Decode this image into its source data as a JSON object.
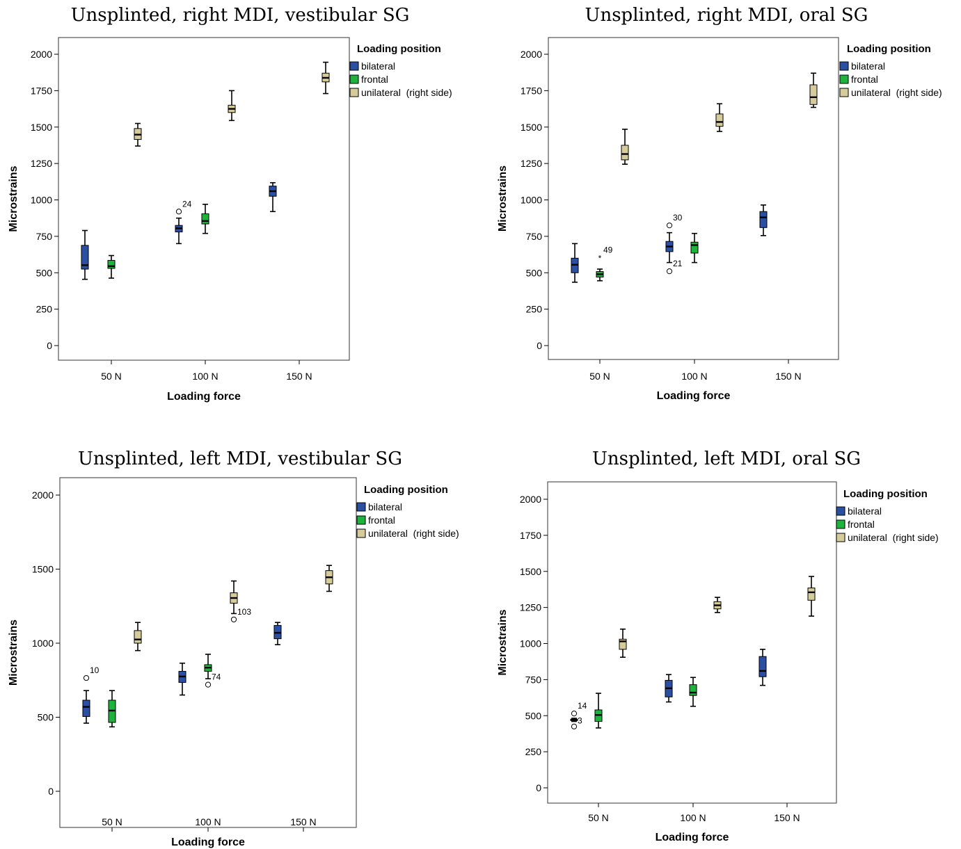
{
  "colors": {
    "bilateral": "#2a4fa3",
    "frontal": "#1db33c",
    "unilateral": "#d6cc9b",
    "frame": "#555555"
  },
  "chart_data": [
    {
      "type": "box",
      "title": "Unsplinted, right MDI, vestibular SG",
      "xlabel": "Loading force",
      "ylabel": "Microstrains",
      "categories": [
        "50 N",
        "100 N",
        "150 N"
      ],
      "ylim": [
        -100,
        2100
      ],
      "yticks": [
        "0",
        "250",
        "500",
        "750",
        "1000",
        "1250",
        "1500",
        "1750",
        "2000"
      ],
      "legend_title": "Loading position",
      "series": [
        {
          "name": "bilateral",
          "boxes": [
            {
              "min": 455,
              "q1": 525,
              "median": 552,
              "q3": 688,
              "max": 790
            },
            {
              "min": 700,
              "q1": 780,
              "median": 805,
              "q3": 825,
              "max": 875
            },
            {
              "min": 920,
              "q1": 1025,
              "median": 1060,
              "q3": 1095,
              "max": 1118
            }
          ]
        },
        {
          "name": "frontal",
          "boxes": [
            {
              "min": 463,
              "q1": 530,
              "median": 545,
              "q3": 585,
              "max": 618
            },
            {
              "min": 770,
              "q1": 835,
              "median": 855,
              "q3": 905,
              "max": 970
            },
            null
          ]
        },
        {
          "name": "unilateral  (right side)",
          "boxes": [
            {
              "min": 1370,
              "q1": 1415,
              "median": 1448,
              "q3": 1490,
              "max": 1525
            },
            {
              "min": 1545,
              "q1": 1600,
              "median": 1625,
              "q3": 1650,
              "max": 1750
            },
            {
              "min": 1730,
              "q1": 1810,
              "median": 1838,
              "q3": 1870,
              "max": 1945
            }
          ]
        }
      ],
      "outliers": [
        {
          "series": "bilateral",
          "category": "100 N",
          "value": 920,
          "label": "24",
          "marker": "circle"
        }
      ]
    },
    {
      "type": "box",
      "title": "Unsplinted, right MDI, oral SG",
      "xlabel": "Loading force",
      "ylabel": "Microstrains",
      "categories": [
        "50 N",
        "100 N",
        "150 N"
      ],
      "ylim": [
        -100,
        2100
      ],
      "yticks": [
        "0",
        "250",
        "500",
        "750",
        "1000",
        "1250",
        "1500",
        "1750",
        "2000"
      ],
      "legend_title": "Loading position",
      "series": [
        {
          "name": "bilateral",
          "boxes": [
            {
              "min": 435,
              "q1": 500,
              "median": 555,
              "q3": 600,
              "max": 700
            },
            {
              "min": 570,
              "q1": 645,
              "median": 680,
              "q3": 715,
              "max": 775
            },
            {
              "min": 755,
              "q1": 810,
              "median": 880,
              "q3": 920,
              "max": 965
            }
          ]
        },
        {
          "name": "frontal",
          "boxes": [
            {
              "min": 445,
              "q1": 470,
              "median": 490,
              "q3": 508,
              "max": 525
            },
            {
              "min": 570,
              "q1": 635,
              "median": 690,
              "q3": 710,
              "max": 770
            },
            null
          ]
        },
        {
          "name": "unilateral  (right side)",
          "boxes": [
            {
              "min": 1245,
              "q1": 1275,
              "median": 1315,
              "q3": 1375,
              "max": 1485
            },
            {
              "min": 1470,
              "q1": 1505,
              "median": 1535,
              "q3": 1590,
              "max": 1660
            },
            {
              "min": 1635,
              "q1": 1655,
              "median": 1705,
              "q3": 1790,
              "max": 1870
            }
          ]
        }
      ],
      "outliers": [
        {
          "series": "frontal",
          "category": "50 N",
          "value": 605,
          "label": "49",
          "marker": "star"
        },
        {
          "series": "bilateral",
          "category": "100 N",
          "value": 825,
          "label": "30",
          "marker": "circle"
        },
        {
          "series": "bilateral",
          "category": "100 N",
          "value": 510,
          "label": "21",
          "marker": "circle"
        }
      ]
    },
    {
      "type": "box",
      "title": "Unsplinted, left MDI, vestibular SG",
      "xlabel": "Loading force",
      "ylabel": "Microstrains",
      "categories": [
        "50 N",
        "100 N",
        "150 N"
      ],
      "ylim": [
        -55,
        2100
      ],
      "yticks": [
        "0",
        "500",
        "1000",
        "1500",
        "2000"
      ],
      "legend_title": "Loading position",
      "series": [
        {
          "name": "bilateral",
          "boxes": [
            {
              "min": 460,
              "q1": 505,
              "median": 570,
              "q3": 615,
              "max": 680
            },
            {
              "min": 650,
              "q1": 735,
              "median": 775,
              "q3": 810,
              "max": 865
            },
            {
              "min": 990,
              "q1": 1030,
              "median": 1070,
              "q3": 1120,
              "max": 1140
            }
          ]
        },
        {
          "name": "frontal",
          "boxes": [
            {
              "min": 435,
              "q1": 465,
              "median": 545,
              "q3": 615,
              "max": 680
            },
            {
              "min": 760,
              "q1": 810,
              "median": 835,
              "q3": 855,
              "max": 925
            },
            null
          ]
        },
        {
          "name": "unilateral  (right side)",
          "boxes": [
            {
              "min": 950,
              "q1": 1000,
              "median": 1025,
              "q3": 1085,
              "max": 1140
            },
            {
              "min": 1200,
              "q1": 1270,
              "median": 1305,
              "q3": 1340,
              "max": 1420
            },
            {
              "min": 1350,
              "q1": 1400,
              "median": 1445,
              "q3": 1490,
              "max": 1525
            }
          ]
        }
      ],
      "outliers": [
        {
          "series": "bilateral",
          "category": "50 N",
          "value": 765,
          "label": "10",
          "marker": "circle"
        },
        {
          "series": "frontal",
          "category": "100 N",
          "value": 720,
          "label": "74",
          "marker": "circle"
        },
        {
          "series": "unilateral  (right side)",
          "category": "100 N",
          "value": 1160,
          "label": "103",
          "marker": "circle"
        }
      ]
    },
    {
      "type": "box",
      "title": "Unsplinted, left MDI, oral SG",
      "xlabel": "Loading force",
      "ylabel": "Microstrains",
      "categories": [
        "50 N",
        "100 N",
        "150 N"
      ],
      "ylim": [
        -100,
        2100
      ],
      "yticks": [
        "0",
        "250",
        "500",
        "750",
        "1000",
        "1250",
        "1500",
        "1750",
        "2000"
      ],
      "legend_title": "Loading position",
      "series": [
        {
          "name": "bilateral",
          "boxes": [
            {
              "min": 460,
              "q1": 466,
              "median": 470,
              "q3": 476,
              "max": 482
            },
            {
              "min": 595,
              "q1": 630,
              "median": 690,
              "q3": 745,
              "max": 785
            },
            {
              "min": 710,
              "q1": 770,
              "median": 810,
              "q3": 910,
              "max": 960
            }
          ]
        },
        {
          "name": "frontal",
          "boxes": [
            {
              "min": 415,
              "q1": 460,
              "median": 505,
              "q3": 540,
              "max": 655
            },
            {
              "min": 565,
              "q1": 640,
              "median": 660,
              "q3": 715,
              "max": 765
            },
            null
          ]
        },
        {
          "name": "unilateral  (right side)",
          "boxes": [
            {
              "min": 905,
              "q1": 960,
              "median": 1015,
              "q3": 1030,
              "max": 1100
            },
            {
              "min": 1215,
              "q1": 1240,
              "median": 1265,
              "q3": 1290,
              "max": 1320
            },
            {
              "min": 1190,
              "q1": 1300,
              "median": 1355,
              "q3": 1385,
              "max": 1465
            }
          ]
        }
      ],
      "outliers": [
        {
          "series": "bilateral",
          "category": "50 N",
          "value": 515,
          "label": "14",
          "marker": "circle"
        },
        {
          "series": "bilateral",
          "category": "50 N",
          "value": 425,
          "label": "",
          "marker": "circle"
        },
        {
          "series": "bilateral",
          "category": "50 N",
          "value": 470,
          "label": "3",
          "marker": "none"
        }
      ]
    }
  ]
}
